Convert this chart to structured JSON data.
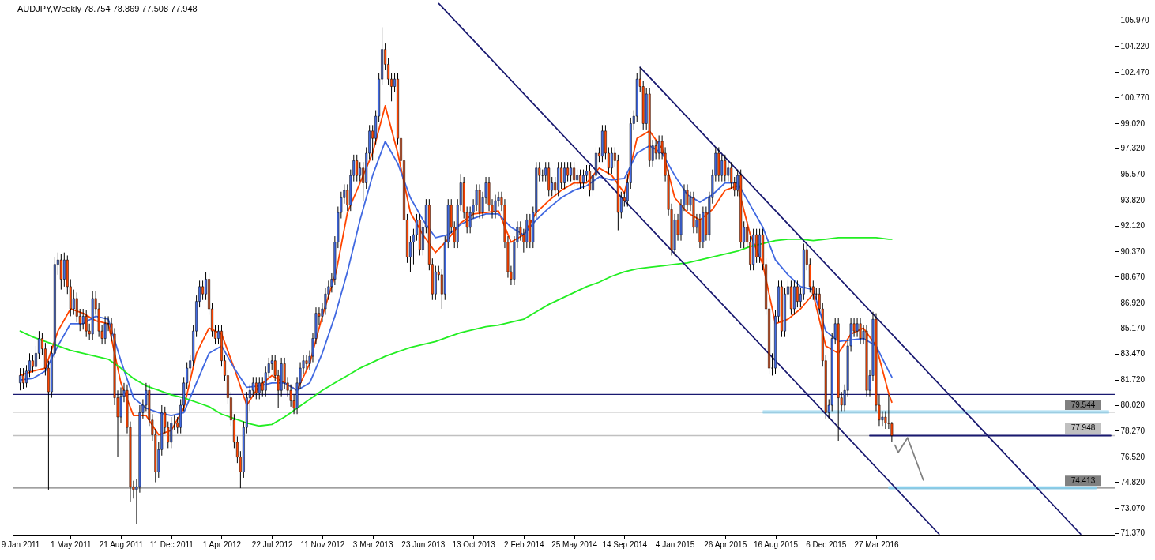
{
  "chart_data": {
    "type": "candlestick",
    "title": "AUDJPY,Weekly  78.754 78.869 77.508 77.948",
    "x": [
      "2011-01-09",
      "2011-01-16",
      "2011-01-23",
      "2011-01-30",
      "2011-02-06",
      "2011-02-13",
      "2011-02-20",
      "2011-02-27",
      "2011-03-06",
      "2011-03-13",
      "2011-03-20",
      "2011-03-27",
      "2011-04-03",
      "2011-04-10",
      "2011-04-17",
      "2011-04-24",
      "2011-05-01",
      "2011-05-08",
      "2011-05-15",
      "2011-05-22",
      "2011-05-29",
      "2011-06-05",
      "2011-06-12",
      "2011-06-19",
      "2011-06-26",
      "2011-07-03",
      "2011-07-10",
      "2011-07-17",
      "2011-07-24",
      "2011-07-31",
      "2011-08-07",
      "2011-08-14",
      "2011-08-21",
      "2011-08-28",
      "2011-09-04",
      "2011-09-11",
      "2011-09-18",
      "2011-09-25",
      "2011-10-02",
      "2011-10-09",
      "2011-10-16",
      "2011-10-23",
      "2011-10-30",
      "2011-11-06",
      "2011-11-13",
      "2011-11-20",
      "2011-11-27",
      "2011-12-04",
      "2011-12-11",
      "2011-12-18",
      "2011-12-25",
      "2012-01-01",
      "2012-01-08",
      "2012-01-15",
      "2012-01-22",
      "2012-01-29",
      "2012-02-05",
      "2012-02-12",
      "2012-02-19",
      "2012-02-26",
      "2012-03-04",
      "2012-03-11",
      "2012-03-18",
      "2012-03-25",
      "2012-04-01",
      "2012-04-08",
      "2012-04-15",
      "2012-04-22",
      "2012-04-29",
      "2012-05-06",
      "2012-05-13",
      "2012-05-20",
      "2012-05-27",
      "2012-06-03",
      "2012-06-10",
      "2012-06-17",
      "2012-06-24",
      "2012-07-01",
      "2012-07-08",
      "2012-07-15",
      "2012-07-22",
      "2012-07-29",
      "2012-08-05",
      "2012-08-12",
      "2012-08-19",
      "2012-08-26",
      "2012-09-02",
      "2012-09-09",
      "2012-09-16",
      "2012-09-23",
      "2012-09-30",
      "2012-10-07",
      "2012-10-14",
      "2012-10-21",
      "2012-10-28",
      "2012-11-04",
      "2012-11-11",
      "2012-11-18",
      "2012-11-25",
      "2012-12-02",
      "2012-12-09",
      "2012-12-16",
      "2012-12-23",
      "2012-12-30",
      "2013-01-06",
      "2013-01-13",
      "2013-01-20",
      "2013-01-27",
      "2013-02-03",
      "2013-02-10",
      "2013-02-17",
      "2013-02-24",
      "2013-03-03",
      "2013-03-10",
      "2013-03-17",
      "2013-03-24",
      "2013-03-31",
      "2013-04-07",
      "2013-04-14",
      "2013-04-21",
      "2013-04-28",
      "2013-05-05",
      "2013-05-12",
      "2013-05-19",
      "2013-05-26",
      "2013-06-02",
      "2013-06-09",
      "2013-06-16",
      "2013-06-23",
      "2013-06-30",
      "2013-07-07",
      "2013-07-14",
      "2013-07-21",
      "2013-07-28",
      "2013-08-04",
      "2013-08-11",
      "2013-08-18",
      "2013-08-25",
      "2013-09-01",
      "2013-09-08",
      "2013-09-15",
      "2013-09-22",
      "2013-09-29",
      "2013-10-06",
      "2013-10-13",
      "2013-10-20",
      "2013-10-27",
      "2013-11-03",
      "2013-11-10",
      "2013-11-17",
      "2013-11-24",
      "2013-12-01",
      "2013-12-08",
      "2013-12-15",
      "2013-12-22",
      "2013-12-29",
      "2014-01-05",
      "2014-01-12",
      "2014-01-19",
      "2014-01-26",
      "2014-02-02",
      "2014-02-09",
      "2014-02-16",
      "2014-02-23",
      "2014-03-02",
      "2014-03-09",
      "2014-03-16",
      "2014-03-23",
      "2014-03-30",
      "2014-04-06",
      "2014-04-13",
      "2014-04-20",
      "2014-04-27",
      "2014-05-04",
      "2014-05-11",
      "2014-05-18",
      "2014-05-25",
      "2014-06-01",
      "2014-06-08",
      "2014-06-15",
      "2014-06-22",
      "2014-06-29",
      "2014-07-06",
      "2014-07-13",
      "2014-07-20",
      "2014-07-27",
      "2014-08-03",
      "2014-08-10",
      "2014-08-17",
      "2014-08-24",
      "2014-08-31",
      "2014-09-07",
      "2014-09-14",
      "2014-09-21",
      "2014-09-28",
      "2014-10-05",
      "2014-10-12",
      "2014-10-19",
      "2014-10-26",
      "2014-11-02",
      "2014-11-09",
      "2014-11-16",
      "2014-11-23",
      "2014-11-30",
      "2014-12-07",
      "2014-12-14",
      "2014-12-21",
      "2014-12-28",
      "2015-01-04",
      "2015-01-11",
      "2015-01-18",
      "2015-01-25",
      "2015-02-01",
      "2015-02-08",
      "2015-02-15",
      "2015-02-22",
      "2015-03-01",
      "2015-03-08",
      "2015-03-15",
      "2015-03-22",
      "2015-03-29",
      "2015-04-05",
      "2015-04-12",
      "2015-04-19",
      "2015-04-26",
      "2015-05-03",
      "2015-05-10",
      "2015-05-17",
      "2015-05-24",
      "2015-05-31",
      "2015-06-07",
      "2015-06-14",
      "2015-06-21",
      "2015-06-28",
      "2015-07-05",
      "2015-07-12",
      "2015-07-19",
      "2015-07-26",
      "2015-08-02",
      "2015-08-09",
      "2015-08-16",
      "2015-08-23",
      "2015-08-30",
      "2015-09-06",
      "2015-09-13",
      "2015-09-20",
      "2015-09-27",
      "2015-10-04",
      "2015-10-11",
      "2015-10-18",
      "2015-10-25",
      "2015-11-01",
      "2015-11-08",
      "2015-11-15",
      "2015-11-22",
      "2015-11-29",
      "2015-12-06",
      "2015-12-13",
      "2015-12-20",
      "2015-12-27",
      "2016-01-03",
      "2016-01-10",
      "2016-01-17",
      "2016-01-24",
      "2016-01-31",
      "2016-02-07",
      "2016-02-14",
      "2016-02-21",
      "2016-02-28",
      "2016-03-06",
      "2016-03-13",
      "2016-03-20",
      "2016-03-27",
      "2016-04-03",
      "2016-04-10",
      "2016-04-17",
      "2016-04-24",
      "2016-05-01"
    ],
    "ohlc": [
      [
        81.5,
        82.5,
        81.0,
        82.0
      ],
      [
        82.0,
        82.5,
        81.1,
        81.5
      ],
      [
        81.5,
        82.7,
        81.2,
        82.3
      ],
      [
        82.3,
        83.5,
        81.9,
        83.0
      ],
      [
        83.0,
        83.4,
        82.2,
        82.6
      ],
      [
        82.6,
        84.0,
        82.2,
        83.5
      ],
      [
        83.5,
        85.0,
        83.1,
        84.5
      ],
      [
        84.5,
        84.9,
        83.4,
        83.8
      ],
      [
        83.8,
        84.2,
        82.0,
        82.5
      ],
      [
        82.5,
        83.0,
        74.3,
        80.9
      ],
      [
        80.9,
        84.0,
        80.5,
        83.5
      ],
      [
        83.5,
        90.0,
        83.2,
        89.5
      ],
      [
        89.5,
        90.3,
        88.8,
        89.8
      ],
      [
        89.8,
        90.2,
        87.8,
        88.5
      ],
      [
        88.5,
        90.3,
        88.0,
        89.8
      ],
      [
        89.8,
        90.1,
        87.5,
        88.0
      ],
      [
        88.0,
        88.5,
        86.0,
        86.5
      ],
      [
        86.5,
        87.8,
        86.1,
        87.2
      ],
      [
        87.2,
        87.6,
        85.6,
        86.0
      ],
      [
        86.0,
        86.5,
        85.0,
        85.5
      ],
      [
        85.5,
        86.5,
        85.1,
        86.0
      ],
      [
        86.0,
        86.4,
        84.6,
        85.0
      ],
      [
        85.0,
        85.5,
        84.4,
        84.8
      ],
      [
        84.8,
        87.7,
        84.4,
        87.2
      ],
      [
        87.2,
        87.7,
        86.1,
        86.5
      ],
      [
        86.5,
        86.9,
        84.6,
        85.0
      ],
      [
        85.0,
        85.4,
        84.1,
        84.5
      ],
      [
        84.5,
        86.0,
        84.1,
        85.5
      ],
      [
        85.5,
        86.0,
        85.0,
        85.5
      ],
      [
        85.5,
        85.9,
        84.3,
        84.8
      ],
      [
        84.8,
        85.2,
        80.0,
        80.5
      ],
      [
        80.5,
        81.0,
        76.5,
        79.2
      ],
      [
        79.2,
        81.2,
        78.8,
        80.6
      ],
      [
        80.6,
        81.5,
        80.2,
        81.0
      ],
      [
        81.0,
        81.4,
        78.1,
        78.5
      ],
      [
        78.5,
        78.9,
        73.5,
        74.5
      ],
      [
        74.5,
        74.9,
        73.7,
        74.3
      ],
      [
        74.3,
        75.0,
        72.0,
        74.5
      ],
      [
        74.5,
        80.0,
        74.1,
        79.5
      ],
      [
        79.5,
        80.4,
        79.1,
        80.0
      ],
      [
        80.0,
        81.5,
        79.6,
        81.0
      ],
      [
        81.0,
        81.4,
        78.6,
        79.0
      ],
      [
        79.0,
        79.4,
        77.6,
        78.0
      ],
      [
        78.0,
        78.4,
        74.8,
        75.5
      ],
      [
        75.5,
        77.5,
        75.1,
        77.0
      ],
      [
        77.0,
        80.0,
        76.6,
        79.5
      ],
      [
        79.5,
        79.9,
        78.1,
        78.5
      ],
      [
        78.5,
        78.9,
        77.1,
        77.5
      ],
      [
        77.5,
        79.2,
        77.1,
        78.8
      ],
      [
        78.8,
        79.3,
        78.3,
        78.8
      ],
      [
        78.8,
        79.2,
        78.1,
        78.5
      ],
      [
        78.5,
        80.4,
        78.1,
        80.0
      ],
      [
        80.0,
        81.9,
        79.6,
        81.5
      ],
      [
        81.5,
        82.9,
        81.1,
        82.5
      ],
      [
        82.5,
        83.4,
        82.1,
        83.0
      ],
      [
        83.0,
        85.4,
        82.6,
        85.0
      ],
      [
        85.0,
        87.4,
        84.6,
        87.0
      ],
      [
        87.0,
        88.4,
        86.6,
        88.0
      ],
      [
        88.0,
        88.4,
        87.1,
        87.5
      ],
      [
        87.5,
        89.0,
        87.1,
        88.5
      ],
      [
        88.5,
        88.9,
        86.1,
        86.5
      ],
      [
        86.5,
        86.9,
        84.6,
        85.0
      ],
      [
        85.0,
        85.4,
        84.1,
        84.5
      ],
      [
        84.5,
        85.4,
        84.1,
        85.0
      ],
      [
        85.0,
        85.4,
        82.6,
        83.0
      ],
      [
        83.0,
        83.4,
        81.6,
        82.0
      ],
      [
        82.0,
        82.4,
        80.1,
        80.5
      ],
      [
        80.5,
        80.9,
        78.6,
        79.0
      ],
      [
        79.0,
        79.4,
        77.1,
        77.5
      ],
      [
        77.5,
        77.9,
        76.1,
        76.5
      ],
      [
        76.5,
        76.9,
        74.4,
        75.5
      ],
      [
        75.5,
        78.9,
        75.1,
        78.5
      ],
      [
        78.5,
        80.9,
        78.1,
        80.5
      ],
      [
        80.5,
        81.4,
        79.6,
        81.0
      ],
      [
        81.0,
        81.9,
        80.6,
        81.5
      ],
      [
        81.5,
        81.9,
        80.4,
        80.8
      ],
      [
        80.8,
        81.9,
        80.4,
        81.5
      ],
      [
        81.5,
        81.9,
        80.6,
        81.0
      ],
      [
        81.0,
        82.6,
        80.6,
        82.2
      ],
      [
        82.2,
        83.2,
        81.8,
        82.8
      ],
      [
        82.8,
        83.4,
        82.4,
        83.0
      ],
      [
        83.0,
        83.4,
        81.6,
        82.0
      ],
      [
        82.0,
        82.4,
        79.8,
        81.0
      ],
      [
        81.0,
        83.2,
        80.6,
        82.8
      ],
      [
        82.8,
        83.2,
        81.1,
        81.5
      ],
      [
        81.5,
        81.9,
        80.6,
        81.0
      ],
      [
        81.0,
        81.4,
        79.9,
        80.3
      ],
      [
        80.3,
        80.7,
        79.4,
        79.8
      ],
      [
        79.8,
        81.9,
        79.4,
        81.5
      ],
      [
        81.5,
        82.9,
        81.1,
        82.5
      ],
      [
        82.5,
        83.4,
        82.1,
        83.0
      ],
      [
        83.0,
        83.4,
        82.4,
        82.8
      ],
      [
        82.8,
        83.7,
        82.4,
        83.3
      ],
      [
        83.3,
        84.9,
        82.9,
        84.5
      ],
      [
        84.5,
        86.6,
        84.1,
        86.2
      ],
      [
        86.2,
        86.6,
        85.4,
        86.0
      ],
      [
        86.0,
        86.9,
        85.6,
        86.5
      ],
      [
        86.5,
        87.9,
        86.1,
        87.5
      ],
      [
        87.5,
        88.4,
        87.1,
        88.0
      ],
      [
        88.0,
        88.9,
        87.6,
        88.5
      ],
      [
        88.5,
        91.4,
        88.1,
        91.0
      ],
      [
        91.0,
        93.4,
        90.6,
        93.0
      ],
      [
        93.0,
        94.4,
        92.6,
        94.0
      ],
      [
        94.0,
        94.9,
        93.6,
        94.5
      ],
      [
        94.5,
        94.9,
        93.1,
        93.5
      ],
      [
        93.5,
        95.9,
        93.1,
        95.5
      ],
      [
        95.5,
        96.9,
        95.1,
        96.5
      ],
      [
        96.5,
        96.9,
        95.1,
        95.5
      ],
      [
        95.5,
        96.4,
        95.1,
        96.0
      ],
      [
        96.0,
        96.4,
        93.8,
        95.0
      ],
      [
        95.0,
        97.4,
        94.6,
        97.0
      ],
      [
        97.0,
        98.9,
        96.6,
        98.5
      ],
      [
        98.5,
        98.9,
        96.5,
        98.0
      ],
      [
        98.0,
        99.9,
        97.6,
        99.5
      ],
      [
        99.5,
        102.4,
        99.1,
        102.0
      ],
      [
        102.0,
        105.5,
        101.6,
        104.0
      ],
      [
        104.0,
        104.4,
        102.6,
        103.0
      ],
      [
        103.0,
        103.4,
        101.6,
        102.0
      ],
      [
        102.0,
        102.4,
        100.5,
        101.5
      ],
      [
        101.5,
        102.4,
        101.1,
        102.0
      ],
      [
        102.0,
        102.4,
        97.6,
        98.0
      ],
      [
        98.0,
        98.4,
        96.1,
        96.5
      ],
      [
        96.5,
        96.9,
        92.1,
        92.5
      ],
      [
        92.5,
        92.9,
        89.6,
        90.0
      ],
      [
        90.0,
        91.4,
        89.0,
        91.0
      ],
      [
        91.0,
        91.9,
        89.5,
        91.5
      ],
      [
        91.5,
        92.9,
        91.1,
        92.5
      ],
      [
        92.5,
        92.9,
        90.1,
        90.5
      ],
      [
        90.5,
        92.4,
        90.1,
        92.0
      ],
      [
        92.0,
        93.9,
        91.6,
        93.5
      ],
      [
        93.5,
        93.9,
        89.1,
        89.5
      ],
      [
        89.5,
        89.9,
        87.1,
        87.5
      ],
      [
        87.5,
        89.4,
        87.1,
        89.0
      ],
      [
        89.0,
        89.4,
        88.4,
        88.8
      ],
      [
        88.8,
        89.2,
        86.5,
        87.5
      ],
      [
        87.5,
        91.4,
        87.1,
        91.0
      ],
      [
        91.0,
        93.9,
        90.6,
        93.5
      ],
      [
        93.5,
        93.9,
        91.6,
        92.0
      ],
      [
        92.0,
        92.4,
        90.6,
        91.0
      ],
      [
        91.0,
        93.9,
        90.6,
        93.5
      ],
      [
        93.5,
        95.6,
        93.1,
        95.0
      ],
      [
        95.0,
        95.4,
        92.6,
        93.0
      ],
      [
        93.0,
        93.4,
        91.6,
        92.0
      ],
      [
        92.0,
        93.4,
        91.6,
        93.0
      ],
      [
        93.0,
        93.9,
        92.6,
        93.5
      ],
      [
        93.5,
        94.9,
        93.1,
        94.5
      ],
      [
        94.5,
        94.9,
        92.6,
        93.0
      ],
      [
        93.0,
        94.4,
        92.6,
        94.0
      ],
      [
        94.0,
        95.4,
        93.6,
        95.0
      ],
      [
        95.0,
        95.4,
        93.1,
        93.5
      ],
      [
        93.5,
        93.9,
        92.6,
        93.0
      ],
      [
        93.0,
        94.2,
        92.6,
        93.8
      ],
      [
        93.8,
        94.4,
        93.4,
        94.0
      ],
      [
        94.0,
        94.4,
        93.1,
        93.5
      ],
      [
        93.5,
        93.9,
        90.6,
        91.0
      ],
      [
        91.0,
        91.4,
        88.6,
        89.0
      ],
      [
        89.0,
        89.4,
        88.1,
        88.5
      ],
      [
        88.5,
        91.4,
        88.1,
        91.0
      ],
      [
        91.0,
        92.4,
        90.6,
        92.0
      ],
      [
        92.0,
        92.4,
        91.1,
        91.5
      ],
      [
        91.5,
        91.9,
        90.3,
        91.0
      ],
      [
        91.0,
        92.9,
        90.6,
        92.5
      ],
      [
        92.5,
        92.9,
        90.6,
        91.0
      ],
      [
        91.0,
        93.4,
        90.6,
        93.0
      ],
      [
        93.0,
        96.4,
        92.6,
        96.0
      ],
      [
        96.0,
        96.4,
        95.1,
        95.5
      ],
      [
        95.5,
        95.9,
        95.1,
        95.5
      ],
      [
        95.5,
        96.4,
        95.1,
        96.0
      ],
      [
        96.0,
        96.4,
        94.1,
        94.5
      ],
      [
        94.5,
        95.4,
        94.1,
        95.0
      ],
      [
        95.0,
        95.4,
        94.1,
        94.5
      ],
      [
        94.5,
        96.4,
        94.1,
        96.0
      ],
      [
        96.0,
        96.4,
        94.6,
        95.0
      ],
      [
        95.0,
        96.4,
        94.6,
        96.0
      ],
      [
        96.0,
        96.4,
        95.1,
        95.5
      ],
      [
        95.5,
        96.4,
        95.1,
        96.0
      ],
      [
        96.0,
        96.4,
        94.8,
        95.2
      ],
      [
        95.2,
        95.9,
        94.8,
        95.5
      ],
      [
        95.5,
        95.9,
        94.6,
        95.0
      ],
      [
        95.0,
        95.9,
        94.6,
        95.5
      ],
      [
        95.5,
        96.2,
        95.1,
        95.8
      ],
      [
        95.8,
        96.2,
        94.1,
        94.5
      ],
      [
        94.5,
        95.9,
        94.1,
        95.5
      ],
      [
        95.5,
        97.4,
        95.1,
        97.0
      ],
      [
        97.0,
        97.4,
        96.4,
        96.8
      ],
      [
        96.8,
        98.9,
        96.4,
        98.5
      ],
      [
        98.5,
        98.9,
        96.6,
        97.0
      ],
      [
        97.0,
        97.4,
        95.6,
        96.0
      ],
      [
        96.0,
        97.4,
        95.6,
        97.0
      ],
      [
        97.0,
        97.4,
        96.1,
        96.5
      ],
      [
        96.5,
        96.9,
        91.8,
        93.0
      ],
      [
        93.0,
        94.4,
        92.6,
        94.0
      ],
      [
        94.0,
        94.4,
        93.4,
        93.8
      ],
      [
        93.8,
        95.6,
        93.4,
        95.0
      ],
      [
        95.0,
        99.4,
        94.6,
        99.0
      ],
      [
        99.0,
        99.9,
        98.6,
        99.5
      ],
      [
        99.5,
        102.4,
        99.1,
        102.0
      ],
      [
        102.0,
        102.8,
        101.1,
        101.5
      ],
      [
        101.5,
        101.9,
        98.6,
        99.0
      ],
      [
        99.0,
        101.4,
        98.6,
        101.0
      ],
      [
        101.0,
        101.4,
        96.1,
        96.5
      ],
      [
        96.5,
        97.9,
        96.1,
        97.5
      ],
      [
        97.5,
        97.9,
        96.6,
        97.0
      ],
      [
        97.0,
        98.2,
        96.6,
        97.8
      ],
      [
        97.8,
        98.2,
        96.6,
        97.0
      ],
      [
        97.0,
        97.4,
        95.1,
        95.5
      ],
      [
        95.5,
        95.9,
        92.8,
        93.2
      ],
      [
        93.2,
        93.6,
        90.1,
        90.5
      ],
      [
        90.5,
        92.9,
        90.1,
        92.5
      ],
      [
        92.5,
        92.9,
        91.1,
        91.5
      ],
      [
        91.5,
        93.9,
        91.1,
        93.5
      ],
      [
        93.5,
        94.9,
        93.1,
        94.5
      ],
      [
        94.5,
        94.9,
        93.1,
        93.5
      ],
      [
        93.5,
        94.4,
        93.1,
        94.0
      ],
      [
        94.0,
        94.4,
        91.6,
        92.0
      ],
      [
        92.0,
        92.9,
        91.6,
        92.5
      ],
      [
        92.5,
        92.9,
        90.6,
        91.0
      ],
      [
        91.0,
        93.4,
        90.6,
        93.0
      ],
      [
        93.0,
        93.4,
        91.1,
        91.5
      ],
      [
        91.5,
        94.4,
        91.1,
        94.0
      ],
      [
        94.0,
        95.9,
        93.6,
        95.5
      ],
      [
        95.5,
        97.4,
        95.1,
        97.0
      ],
      [
        97.0,
        97.4,
        95.1,
        95.5
      ],
      [
        95.5,
        96.9,
        95.1,
        96.5
      ],
      [
        96.5,
        96.9,
        95.1,
        95.5
      ],
      [
        95.5,
        96.4,
        95.1,
        96.0
      ],
      [
        96.0,
        96.4,
        94.6,
        95.0
      ],
      [
        95.0,
        95.4,
        94.1,
        94.5
      ],
      [
        94.5,
        95.9,
        94.1,
        95.5
      ],
      [
        95.5,
        95.9,
        90.6,
        91.0
      ],
      [
        91.0,
        92.4,
        90.6,
        92.0
      ],
      [
        92.0,
        92.4,
        90.6,
        91.0
      ],
      [
        91.0,
        91.4,
        89.1,
        89.5
      ],
      [
        89.5,
        91.9,
        89.1,
        91.5
      ],
      [
        91.5,
        91.9,
        89.6,
        90.0
      ],
      [
        90.0,
        91.9,
        89.6,
        91.5
      ],
      [
        91.5,
        91.9,
        89.1,
        89.5
      ],
      [
        89.5,
        89.9,
        86.1,
        86.5
      ],
      [
        86.5,
        86.9,
        82.1,
        82.5
      ],
      [
        82.5,
        83.5,
        82.0,
        82.5
      ],
      [
        82.5,
        86.4,
        82.1,
        86.0
      ],
      [
        86.0,
        88.4,
        85.6,
        88.0
      ],
      [
        88.0,
        88.4,
        84.6,
        85.0
      ],
      [
        85.0,
        87.9,
        84.6,
        87.5
      ],
      [
        87.5,
        88.4,
        87.1,
        88.0
      ],
      [
        88.0,
        88.4,
        86.1,
        86.5
      ],
      [
        86.5,
        88.4,
        86.1,
        88.0
      ],
      [
        88.0,
        88.4,
        86.6,
        87.0
      ],
      [
        87.0,
        87.9,
        86.6,
        87.5
      ],
      [
        87.5,
        90.9,
        87.1,
        90.5
      ],
      [
        90.5,
        90.9,
        89.1,
        89.5
      ],
      [
        89.5,
        89.9,
        87.6,
        88.0
      ],
      [
        88.0,
        88.4,
        87.1,
        87.5
      ],
      [
        87.5,
        87.9,
        87.1,
        87.5
      ],
      [
        87.5,
        87.9,
        86.1,
        86.5
      ],
      [
        86.5,
        86.9,
        82.6,
        83.0
      ],
      [
        83.0,
        83.4,
        79.1,
        79.5
      ],
      [
        79.5,
        80.4,
        79.1,
        80.0
      ],
      [
        80.0,
        84.9,
        79.6,
        84.5
      ],
      [
        84.5,
        85.9,
        84.1,
        85.5
      ],
      [
        85.5,
        85.9,
        77.6,
        80.5
      ],
      [
        80.5,
        80.9,
        79.6,
        80.0
      ],
      [
        80.0,
        81.4,
        79.6,
        81.0
      ],
      [
        81.0,
        84.4,
        80.6,
        84.0
      ],
      [
        84.0,
        85.9,
        83.6,
        85.5
      ],
      [
        85.5,
        85.9,
        84.6,
        85.0
      ],
      [
        85.0,
        85.9,
        84.6,
        85.5
      ],
      [
        85.5,
        85.9,
        84.1,
        84.5
      ],
      [
        84.5,
        85.4,
        84.1,
        85.0
      ],
      [
        85.0,
        85.4,
        80.6,
        81.0
      ],
      [
        81.0,
        82.4,
        80.6,
        82.0
      ],
      [
        82.0,
        86.3,
        81.6,
        85.8
      ],
      [
        85.8,
        86.2,
        79.6,
        80.0
      ],
      [
        80.0,
        80.7,
        78.6,
        79.0
      ],
      [
        79.0,
        79.6,
        78.6,
        79.2
      ],
      [
        79.2,
        79.6,
        78.4,
        78.8
      ],
      [
        78.8,
        80.7,
        78.4,
        78.754
      ],
      [
        78.754,
        78.869,
        77.508,
        77.948
      ]
    ],
    "xlim": [
      "2011-01-01",
      "2017-08-31"
    ],
    "xticks": [
      {
        "value": "2011-01-09",
        "label": "9 Jan 2011"
      },
      {
        "value": "2011-05-01",
        "label": "1 May 2011"
      },
      {
        "value": "2011-08-21",
        "label": "21 Aug 2011"
      },
      {
        "value": "2011-12-11",
        "label": "11 Dec 2011"
      },
      {
        "value": "2012-04-01",
        "label": "1 Apr 2012"
      },
      {
        "value": "2012-07-22",
        "label": "22 Jul 2012"
      },
      {
        "value": "2012-11-11",
        "label": "11 Nov 2012"
      },
      {
        "value": "2013-03-03",
        "label": "3 Mar 2013"
      },
      {
        "value": "2013-06-23",
        "label": "23 Jun 2013"
      },
      {
        "value": "2013-10-13",
        "label": "13 Oct 2013"
      },
      {
        "value": "2014-02-02",
        "label": "2 Feb 2014"
      },
      {
        "value": "2014-05-25",
        "label": "25 May 2014"
      },
      {
        "value": "2014-09-14",
        "label": "14 Sep 2014"
      },
      {
        "value": "2015-01-04",
        "label": "4 Jan 2015"
      },
      {
        "value": "2015-04-26",
        "label": "26 Apr 2015"
      },
      {
        "value": "2015-08-16",
        "label": "16 Aug 2015"
      },
      {
        "value": "2015-12-06",
        "label": "6 Dec 2015"
      },
      {
        "value": "2016-03-27",
        "label": "27 Mar 2016"
      }
    ],
    "ylim": [
      71.26,
      107.23
    ],
    "yticks": [
      {
        "value": 105.97,
        "label": "105.970"
      },
      {
        "value": 104.22,
        "label": "104.220"
      },
      {
        "value": 102.47,
        "label": "102.470"
      },
      {
        "value": 100.77,
        "label": "100.770"
      },
      {
        "value": 99.02,
        "label": "99.020"
      },
      {
        "value": 97.32,
        "label": "97.320"
      },
      {
        "value": 95.57,
        "label": "95.570"
      },
      {
        "value": 93.82,
        "label": "93.820"
      },
      {
        "value": 92.12,
        "label": "92.120"
      },
      {
        "value": 90.37,
        "label": "90.370"
      },
      {
        "value": 88.67,
        "label": "88.670"
      },
      {
        "value": 86.92,
        "label": "86.920"
      },
      {
        "value": 85.17,
        "label": "85.170"
      },
      {
        "value": 83.47,
        "label": "83.470"
      },
      {
        "value": 81.72,
        "label": "81.720"
      },
      {
        "value": 80.02,
        "label": "80.020"
      },
      {
        "value": 78.27,
        "label": "78.270"
      },
      {
        "value": 76.52,
        "label": "76.520"
      },
      {
        "value": 74.82,
        "label": "74.820"
      },
      {
        "value": 73.07,
        "label": "73.070"
      },
      {
        "value": 71.37,
        "label": "71.370"
      }
    ],
    "series": [
      {
        "type": "line",
        "color": "#ff4500",
        "x": [
          "2011-01-09",
          "2011-02-06",
          "2011-03-06",
          "2011-04-03",
          "2011-05-01",
          "2011-05-29",
          "2011-06-26",
          "2011-07-24",
          "2011-08-21",
          "2011-09-18",
          "2011-10-16",
          "2011-11-13",
          "2011-12-11",
          "2012-01-08",
          "2012-02-05",
          "2012-03-04",
          "2012-04-01",
          "2012-04-29",
          "2012-05-27",
          "2012-06-24",
          "2012-07-22",
          "2012-08-19",
          "2012-09-16",
          "2012-10-14",
          "2012-11-11",
          "2012-12-12",
          "2013-01-06",
          "2013-02-03",
          "2013-03-03",
          "2013-03-31",
          "2013-04-28",
          "2013-05-26",
          "2013-06-23",
          "2013-07-21",
          "2013-08-18",
          "2013-09-15",
          "2013-10-13",
          "2013-11-10",
          "2013-12-08",
          "2014-01-05",
          "2014-02-02",
          "2014-03-02",
          "2014-03-30",
          "2014-04-27",
          "2014-05-25",
          "2014-06-22",
          "2014-07-20",
          "2014-08-17",
          "2014-09-14",
          "2014-10-12",
          "2014-11-09",
          "2014-12-07",
          "2015-01-04",
          "2015-02-01",
          "2015-03-01",
          "2015-03-29",
          "2015-04-26",
          "2015-05-24",
          "2015-06-21",
          "2015-07-19",
          "2015-08-16",
          "2015-09-13",
          "2015-10-11",
          "2015-11-08",
          "2015-12-06",
          "2016-01-03",
          "2016-01-31",
          "2016-02-28",
          "2016-03-27",
          "2016-04-24",
          "2016-05-01"
        ],
        "values": [
          82.0,
          82.3,
          82.5,
          85.0,
          86.5,
          86.2,
          85.7,
          85.5,
          81.5,
          79.3,
          79.3,
          78.0,
          78.3,
          79.8,
          83.5,
          85.2,
          84.8,
          82.5,
          80.0,
          81.3,
          82.0,
          81.5,
          81.0,
          82.8,
          86.0,
          89.0,
          93.0,
          95.0,
          97.0,
          100.2,
          97.0,
          93.0,
          91.5,
          90.3,
          91.2,
          92.3,
          92.9,
          93.0,
          93.1,
          91.0,
          91.5,
          93.0,
          93.8,
          94.5,
          95.0,
          95.0,
          96.0,
          95.5,
          94.3,
          98.0,
          98.5,
          97.3,
          94.0,
          93.0,
          92.5,
          93.2,
          94.5,
          94.8,
          91.5,
          89.5,
          85.5,
          85.8,
          86.5,
          87.5,
          84.0,
          83.5,
          84.8,
          85.2,
          84.0,
          80.8,
          80.2
        ]
      },
      {
        "type": "line",
        "color": "#4169e1",
        "x": [
          "2011-01-09",
          "2011-02-06",
          "2011-03-06",
          "2011-04-03",
          "2011-05-01",
          "2011-05-29",
          "2011-06-26",
          "2011-07-24",
          "2011-08-21",
          "2011-09-18",
          "2011-10-16",
          "2011-11-13",
          "2011-12-11",
          "2012-01-08",
          "2012-02-05",
          "2012-03-04",
          "2012-04-01",
          "2012-04-29",
          "2012-05-27",
          "2012-06-24",
          "2012-07-22",
          "2012-08-19",
          "2012-09-16",
          "2012-10-14",
          "2012-11-11",
          "2012-12-09",
          "2013-01-06",
          "2013-02-03",
          "2013-03-03",
          "2013-03-31",
          "2013-04-28",
          "2013-05-26",
          "2013-06-23",
          "2013-07-21",
          "2013-08-18",
          "2013-09-15",
          "2013-10-13",
          "2013-11-10",
          "2013-12-08",
          "2014-01-05",
          "2014-02-02",
          "2014-03-02",
          "2014-03-30",
          "2014-04-27",
          "2014-05-25",
          "2014-06-22",
          "2014-07-20",
          "2014-08-17",
          "2014-09-14",
          "2014-10-12",
          "2014-11-09",
          "2014-12-07",
          "2015-01-04",
          "2015-02-01",
          "2015-03-01",
          "2015-03-29",
          "2015-04-26",
          "2015-05-24",
          "2015-06-21",
          "2015-07-19",
          "2015-08-16",
          "2015-09-13",
          "2015-10-11",
          "2015-11-08",
          "2015-12-06",
          "2016-01-03",
          "2016-01-31",
          "2016-02-28",
          "2016-03-27",
          "2016-04-24",
          "2016-05-01"
        ],
        "values": [
          81.7,
          81.8,
          82.3,
          84.0,
          85.5,
          85.5,
          86.0,
          85.8,
          83.0,
          80.5,
          79.8,
          79.5,
          79.3,
          79.5,
          81.5,
          83.5,
          84.0,
          82.5,
          81.2,
          81.3,
          81.5,
          81.5,
          81.0,
          81.5,
          83.5,
          86.0,
          89.0,
          92.5,
          95.5,
          97.8,
          96.3,
          94.0,
          92.5,
          91.3,
          91.5,
          92.2,
          92.6,
          92.9,
          92.9,
          92.0,
          91.5,
          92.5,
          93.3,
          94.0,
          94.5,
          94.8,
          95.4,
          95.2,
          95.3,
          97.0,
          97.5,
          97.0,
          95.5,
          94.2,
          93.7,
          94.2,
          95.0,
          95.0,
          93.5,
          92.0,
          89.8,
          88.8,
          88.0,
          87.8,
          85.0,
          84.3,
          84.4,
          84.5,
          84.0,
          82.3,
          81.9
        ]
      },
      {
        "type": "line",
        "color": "#22ee22",
        "x": [
          "2011-01-09",
          "2011-02-06",
          "2011-03-06",
          "2011-04-03",
          "2011-05-01",
          "2011-05-29",
          "2011-06-26",
          "2011-07-24",
          "2011-08-21",
          "2011-09-18",
          "2011-10-16",
          "2011-11-13",
          "2011-12-11",
          "2012-01-08",
          "2012-02-05",
          "2012-03-04",
          "2012-04-01",
          "2012-04-29",
          "2012-05-27",
          "2012-06-24",
          "2012-07-22",
          "2012-08-19",
          "2012-09-16",
          "2012-10-14",
          "2012-11-11",
          "2012-12-09",
          "2013-01-06",
          "2013-02-03",
          "2013-03-03",
          "2013-03-31",
          "2013-04-28",
          "2013-05-26",
          "2013-06-23",
          "2013-07-21",
          "2013-08-18",
          "2013-09-15",
          "2013-10-13",
          "2013-11-10",
          "2013-12-08",
          "2014-01-05",
          "2014-02-02",
          "2014-03-02",
          "2014-03-30",
          "2014-04-27",
          "2014-05-25",
          "2014-06-22",
          "2014-07-20",
          "2014-08-17",
          "2014-09-14",
          "2014-10-12",
          "2014-11-09",
          "2014-12-07",
          "2015-01-04",
          "2015-02-01",
          "2015-03-01",
          "2015-03-29",
          "2015-04-26",
          "2015-05-24",
          "2015-06-21",
          "2015-07-19",
          "2015-08-16",
          "2015-09-13",
          "2015-10-11",
          "2015-11-08",
          "2015-12-06",
          "2016-01-03",
          "2016-01-31",
          "2016-02-28",
          "2016-03-27",
          "2016-04-24",
          "2016-05-01"
        ],
        "values": [
          85.0,
          84.6,
          84.3,
          84.0,
          83.7,
          83.5,
          83.3,
          83.1,
          82.5,
          81.8,
          81.3,
          81.0,
          80.7,
          80.5,
          80.2,
          79.9,
          79.4,
          79.1,
          78.8,
          78.6,
          78.7,
          79.2,
          79.8,
          80.4,
          81.0,
          81.5,
          82.0,
          82.5,
          82.9,
          83.3,
          83.6,
          83.9,
          84.1,
          84.3,
          84.6,
          84.9,
          85.1,
          85.3,
          85.4,
          85.6,
          85.8,
          86.3,
          86.8,
          87.2,
          87.6,
          88.0,
          88.3,
          88.7,
          89.0,
          89.2,
          89.3,
          89.4,
          89.5,
          89.6,
          89.8,
          90.0,
          90.2,
          90.4,
          90.7,
          90.9,
          91.1,
          91.2,
          91.2,
          91.1,
          91.2,
          91.3,
          91.3,
          91.3,
          91.3,
          91.2,
          91.2
        ]
      },
      {
        "type": "line",
        "color": "#87ceeb",
        "x": [
          "2015-07-19",
          "2017-08-27"
        ],
        "values": [
          79.544,
          79.544
        ],
        "lower": [
          79.42,
          79.42
        ],
        "upper": [
          79.67,
          79.67
        ]
      },
      {
        "type": "line",
        "color": "#87ceeb",
        "x": [
          "2016-04-24",
          "2017-07-30"
        ],
        "values": [
          74.413,
          74.413
        ],
        "lower": [
          74.29,
          74.29
        ],
        "upper": [
          74.54,
          74.54
        ]
      },
      {
        "type": "line",
        "color": "#191970",
        "x": [
          "2014-10-19",
          "2017-06-25"
        ],
        "values": [
          102.8,
          71.3
        ]
      },
      {
        "type": "line",
        "color": "#191970",
        "x": [
          "2013-07-28",
          "2016-08-14"
        ],
        "values": [
          107.1,
          71.3
        ]
      },
      {
        "type": "line",
        "color": "#191970",
        "x": [
          "2016-03-13",
          "2017-08-31"
        ],
        "values": [
          77.948,
          77.948
        ]
      },
      {
        "type": "line",
        "color": "#808080",
        "x": [
          "2016-05-08",
          "2016-05-15",
          "2016-06-05",
          "2016-07-10"
        ],
        "values": [
          77.3,
          76.8,
          77.8,
          74.95
        ]
      }
    ],
    "ref_lines": [
      {
        "axis": "y",
        "value": 80.73,
        "color": "#191970"
      },
      {
        "axis": "y",
        "value": 79.544,
        "label": "79.544",
        "color": "#808080"
      },
      {
        "axis": "y",
        "value": 77.948,
        "label": "77.948",
        "color": "#c0c0c0"
      },
      {
        "axis": "y",
        "value": 74.413,
        "label": "74.413",
        "color": "#808080"
      }
    ],
    "grid": false
  }
}
